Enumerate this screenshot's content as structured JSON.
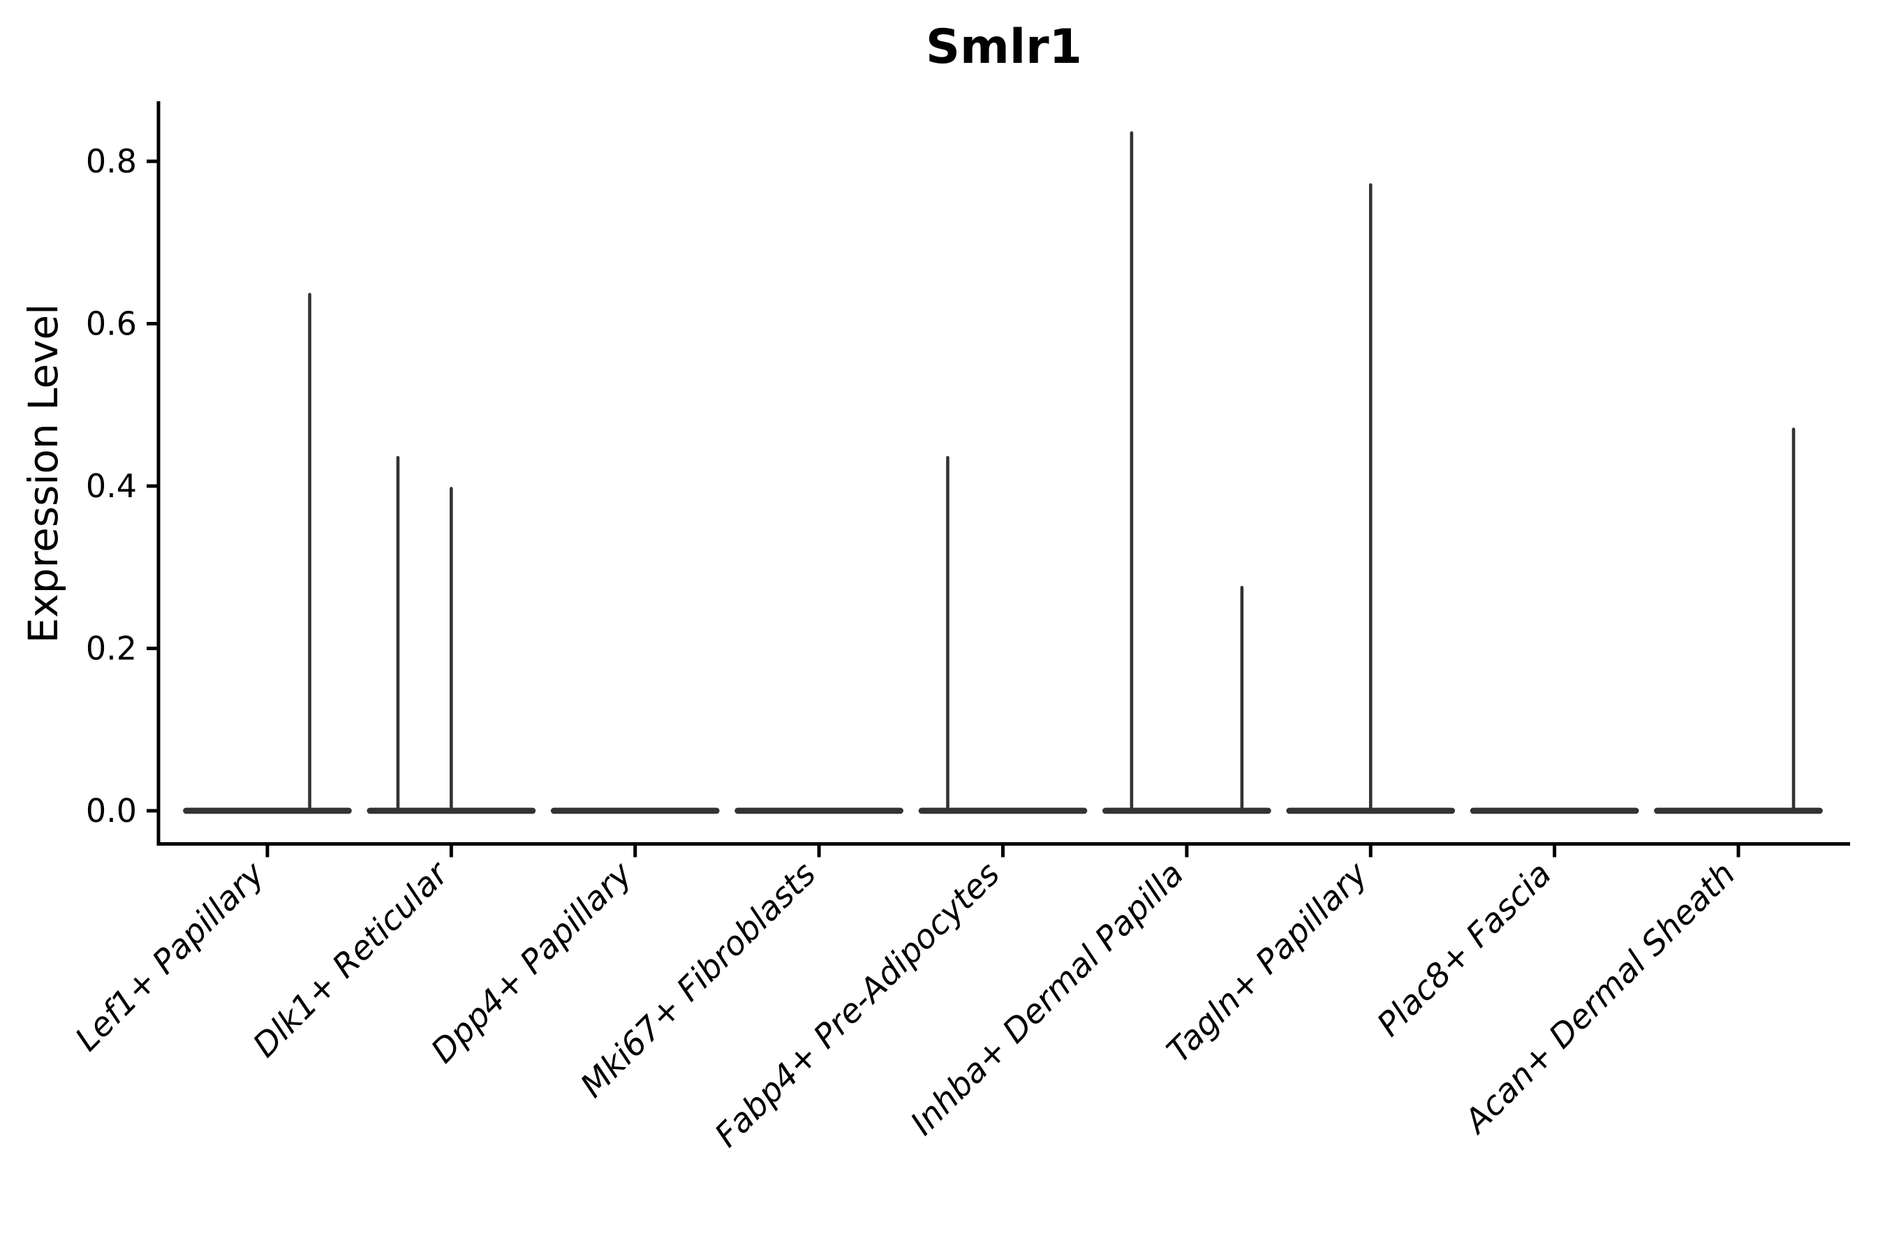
{
  "title": "Smlr1",
  "ylabel": "Expression Level",
  "colors": {
    "background": "#ffffff",
    "axis": "#000000",
    "violin": "#333333"
  },
  "chart_data": {
    "type": "violin",
    "title": "Smlr1",
    "xlabel": "",
    "ylabel": "Expression Level",
    "ylim": [
      0.0,
      0.874
    ],
    "yticks": [
      0.0,
      0.2,
      0.4,
      0.6,
      0.8
    ],
    "ytick_labels": [
      "0.0",
      "0.2",
      "0.4",
      "0.6",
      "0.8"
    ],
    "grid": false,
    "legend": "none",
    "x_labels_rotation_deg": 45,
    "categories": [
      "Lef1+ Papillary",
      "Dlk1+ Reticular",
      "Dpp4+ Papillary",
      "Mki67+ Fibroblasts",
      "Fabp4+ Pre-Adipocytes",
      "Inhba+ Dermal Papilla",
      "Tagln+ Papillary",
      "Plac8+ Fascia",
      "Acan+ Dermal Sheath"
    ],
    "series": [
      {
        "name": "Lef1+ Papillary",
        "baseline_value": 0.0,
        "body_halfwidth": 0.456,
        "spikes": [
          {
            "offset": 0.23,
            "value": 0.636
          }
        ]
      },
      {
        "name": "Dlk1+ Reticular",
        "baseline_value": 0.0,
        "body_halfwidth": 0.456,
        "spikes": [
          {
            "offset": -0.29,
            "value": 0.435
          },
          {
            "offset": 0.0,
            "value": 0.397
          }
        ]
      },
      {
        "name": "Dpp4+ Papillary",
        "baseline_value": 0.0,
        "body_halfwidth": 0.456,
        "spikes": []
      },
      {
        "name": "Mki67+ Fibroblasts",
        "baseline_value": 0.0,
        "body_halfwidth": 0.456,
        "spikes": []
      },
      {
        "name": "Fabp4+ Pre-Adipocytes",
        "baseline_value": 0.0,
        "body_halfwidth": 0.456,
        "spikes": [
          {
            "offset": -0.3,
            "value": 0.435
          }
        ]
      },
      {
        "name": "Inhba+ Dermal Papilla",
        "baseline_value": 0.0,
        "body_halfwidth": 0.456,
        "spikes": [
          {
            "offset": -0.3,
            "value": 0.835
          },
          {
            "offset": 0.3,
            "value": 0.275
          }
        ]
      },
      {
        "name": "Tagln+ Papillary",
        "baseline_value": 0.0,
        "body_halfwidth": 0.456,
        "spikes": [
          {
            "offset": 0.0,
            "value": 0.771
          }
        ]
      },
      {
        "name": "Plac8+ Fascia",
        "baseline_value": 0.0,
        "body_halfwidth": 0.456,
        "spikes": []
      },
      {
        "name": "Acan+ Dermal Sheath",
        "baseline_value": 0.0,
        "body_halfwidth": 0.456,
        "spikes": [
          {
            "offset": 0.3,
            "value": 0.47
          }
        ]
      }
    ]
  }
}
